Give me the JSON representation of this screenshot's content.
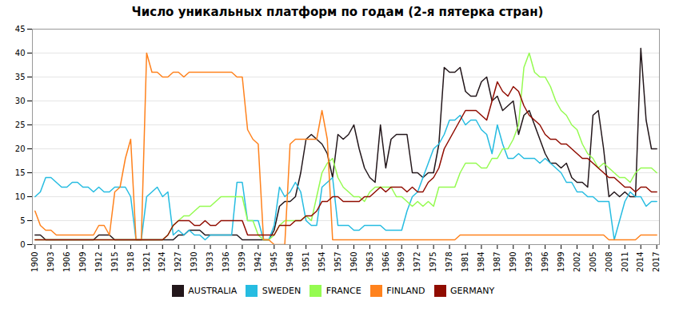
{
  "chart_data": {
    "type": "line",
    "title": "Число уникальных платформ по годам (2-я пятерка стран)",
    "x": [
      1900,
      1901,
      1902,
      1903,
      1904,
      1905,
      1906,
      1907,
      1908,
      1909,
      1910,
      1911,
      1912,
      1913,
      1914,
      1915,
      1916,
      1917,
      1918,
      1919,
      1920,
      1921,
      1922,
      1923,
      1924,
      1925,
      1926,
      1927,
      1928,
      1929,
      1930,
      1931,
      1932,
      1933,
      1934,
      1935,
      1936,
      1937,
      1938,
      1939,
      1940,
      1941,
      1942,
      1943,
      1944,
      1945,
      1946,
      1947,
      1948,
      1949,
      1950,
      1951,
      1952,
      1953,
      1954,
      1955,
      1956,
      1957,
      1958,
      1959,
      1960,
      1961,
      1962,
      1963,
      1964,
      1965,
      1966,
      1967,
      1968,
      1969,
      1970,
      1971,
      1972,
      1973,
      1974,
      1975,
      1976,
      1977,
      1978,
      1979,
      1980,
      1981,
      1982,
      1983,
      1984,
      1985,
      1986,
      1987,
      1988,
      1989,
      1990,
      1991,
      1992,
      1993,
      1994,
      1995,
      1996,
      1997,
      1998,
      1999,
      2000,
      2001,
      2002,
      2003,
      2004,
      2005,
      2006,
      2007,
      2008,
      2009,
      2010,
      2011,
      2012,
      2013,
      2014,
      2015,
      2016,
      2017
    ],
    "series": [
      {
        "name": "AUSTRALIA",
        "values": [
          2,
          2,
          1,
          1,
          1,
          1,
          1,
          1,
          1,
          1,
          1,
          1,
          2,
          2,
          2,
          1,
          1,
          1,
          1,
          1,
          1,
          1,
          1,
          1,
          1,
          1,
          1,
          2,
          2,
          3,
          3,
          3,
          2,
          2,
          2,
          2,
          2,
          2,
          2,
          1,
          1,
          1,
          1,
          1,
          1,
          3,
          8,
          9,
          9,
          10,
          15,
          22,
          23,
          22,
          21,
          19,
          14,
          23,
          22,
          23,
          25,
          20,
          16,
          14,
          13,
          25,
          16,
          22,
          23,
          23,
          23,
          15,
          15,
          14,
          15,
          15,
          21,
          37,
          36,
          36,
          37,
          32,
          31,
          31,
          34,
          35,
          30,
          31,
          28,
          29,
          30,
          23,
          27,
          28,
          25,
          22,
          19,
          17,
          17,
          16,
          17,
          14,
          13,
          13,
          12,
          27,
          28,
          20,
          10,
          11,
          10,
          11,
          10,
          10,
          41,
          26,
          20,
          20
        ]
      },
      {
        "name": "SWEDEN",
        "values": [
          10,
          11,
          14,
          14,
          13,
          12,
          12,
          13,
          13,
          12,
          12,
          11,
          12,
          11,
          11,
          12,
          12,
          12,
          10,
          1,
          1,
          10,
          11,
          12,
          10,
          11,
          2,
          3,
          2,
          3,
          2,
          2,
          1,
          2,
          2,
          2,
          2,
          2,
          13,
          13,
          5,
          5,
          5,
          1,
          1,
          4,
          12,
          10,
          11,
          13,
          11,
          5,
          4,
          4,
          12,
          13,
          14,
          4,
          4,
          4,
          3,
          3,
          4,
          4,
          4,
          4,
          3,
          3,
          3,
          3,
          7,
          10,
          11,
          14,
          17,
          20,
          21,
          23,
          26,
          26,
          27,
          25,
          26,
          26,
          24,
          23,
          19,
          25,
          21,
          18,
          18,
          19,
          18,
          18,
          18,
          17,
          18,
          17,
          16,
          15,
          13,
          13,
          11,
          11,
          10,
          10,
          9,
          9,
          9,
          1,
          5,
          9,
          11,
          10,
          10,
          8,
          9,
          9
        ]
      },
      {
        "name": "FRANCE",
        "values": [
          1,
          1,
          1,
          1,
          1,
          1,
          1,
          1,
          1,
          1,
          1,
          1,
          1,
          1,
          1,
          1,
          1,
          1,
          1,
          1,
          1,
          1,
          1,
          1,
          1,
          2,
          4,
          5,
          6,
          6,
          7,
          8,
          8,
          8,
          9,
          10,
          10,
          10,
          10,
          10,
          5,
          5,
          2,
          1,
          1,
          2,
          4,
          5,
          5,
          5,
          5,
          6,
          5,
          10,
          15,
          17,
          18,
          14,
          12,
          11,
          10,
          10,
          9,
          11,
          12,
          12,
          12,
          12,
          10,
          10,
          9,
          8,
          9,
          8,
          9,
          8,
          12,
          12,
          12,
          12,
          15,
          17,
          17,
          17,
          16,
          16,
          18,
          18,
          20,
          20,
          22,
          25,
          37,
          40,
          36,
          35,
          35,
          33,
          30,
          28,
          27,
          25,
          24,
          21,
          19,
          18,
          16,
          17,
          16,
          15,
          14,
          14,
          13,
          15,
          16,
          16,
          16,
          15
        ]
      },
      {
        "name": "FINLAND",
        "values": [
          7,
          4,
          3,
          3,
          2,
          2,
          2,
          2,
          2,
          2,
          2,
          2,
          4,
          4,
          2,
          11,
          12,
          18,
          22,
          1,
          1,
          40,
          36,
          36,
          35,
          35,
          36,
          36,
          35,
          36,
          36,
          36,
          36,
          36,
          36,
          36,
          36,
          36,
          35,
          35,
          24,
          22,
          21,
          1,
          1,
          0,
          0,
          0,
          21,
          22,
          22,
          22,
          22,
          22,
          28,
          22,
          1,
          1,
          1,
          1,
          1,
          1,
          1,
          1,
          1,
          1,
          1,
          1,
          1,
          1,
          1,
          1,
          1,
          1,
          1,
          1,
          1,
          1,
          1,
          1,
          2,
          2,
          2,
          2,
          2,
          2,
          2,
          2,
          2,
          2,
          2,
          2,
          2,
          2,
          2,
          2,
          2,
          2,
          2,
          2,
          2,
          2,
          2,
          2,
          2,
          2,
          2,
          2,
          1,
          1,
          1,
          1,
          1,
          1,
          2,
          2,
          2,
          2
        ]
      },
      {
        "name": "GERMANY",
        "values": [
          1,
          1,
          1,
          1,
          1,
          1,
          1,
          1,
          1,
          1,
          1,
          1,
          1,
          1,
          1,
          1,
          1,
          1,
          1,
          1,
          1,
          1,
          1,
          1,
          1,
          2,
          4,
          5,
          5,
          5,
          4,
          4,
          5,
          4,
          4,
          5,
          5,
          5,
          5,
          5,
          2,
          2,
          2,
          2,
          2,
          2,
          4,
          4,
          4,
          5,
          5,
          6,
          6,
          7,
          9,
          9,
          10,
          10,
          9,
          9,
          9,
          9,
          10,
          10,
          11,
          12,
          11,
          12,
          12,
          12,
          11,
          12,
          11,
          11,
          13,
          14,
          16,
          20,
          22,
          24,
          26,
          28,
          28,
          28,
          27,
          26,
          30,
          34,
          32,
          31,
          33,
          32,
          29,
          27,
          26,
          25,
          23,
          22,
          22,
          21,
          21,
          20,
          19,
          18,
          18,
          17,
          16,
          15,
          14,
          14,
          13,
          12,
          12,
          11,
          12,
          12,
          11,
          11
        ]
      }
    ],
    "xlim": [
      1899.5,
      2017.5
    ],
    "xticks": [
      1900,
      1903,
      1906,
      1909,
      1912,
      1915,
      1918,
      1921,
      1924,
      1927,
      1930,
      1933,
      1936,
      1939,
      1942,
      1945,
      1948,
      1951,
      1954,
      1957,
      1960,
      1963,
      1966,
      1969,
      1972,
      1975,
      1978,
      1981,
      1984,
      1987,
      1990,
      1993,
      1996,
      1999,
      2002,
      2005,
      2008,
      2011,
      2014,
      2017
    ],
    "ylim": [
      0,
      45
    ],
    "yticks": [
      0,
      5,
      10,
      15,
      20,
      25,
      30,
      35,
      40,
      45
    ],
    "grid": true,
    "legend": "bottom"
  }
}
